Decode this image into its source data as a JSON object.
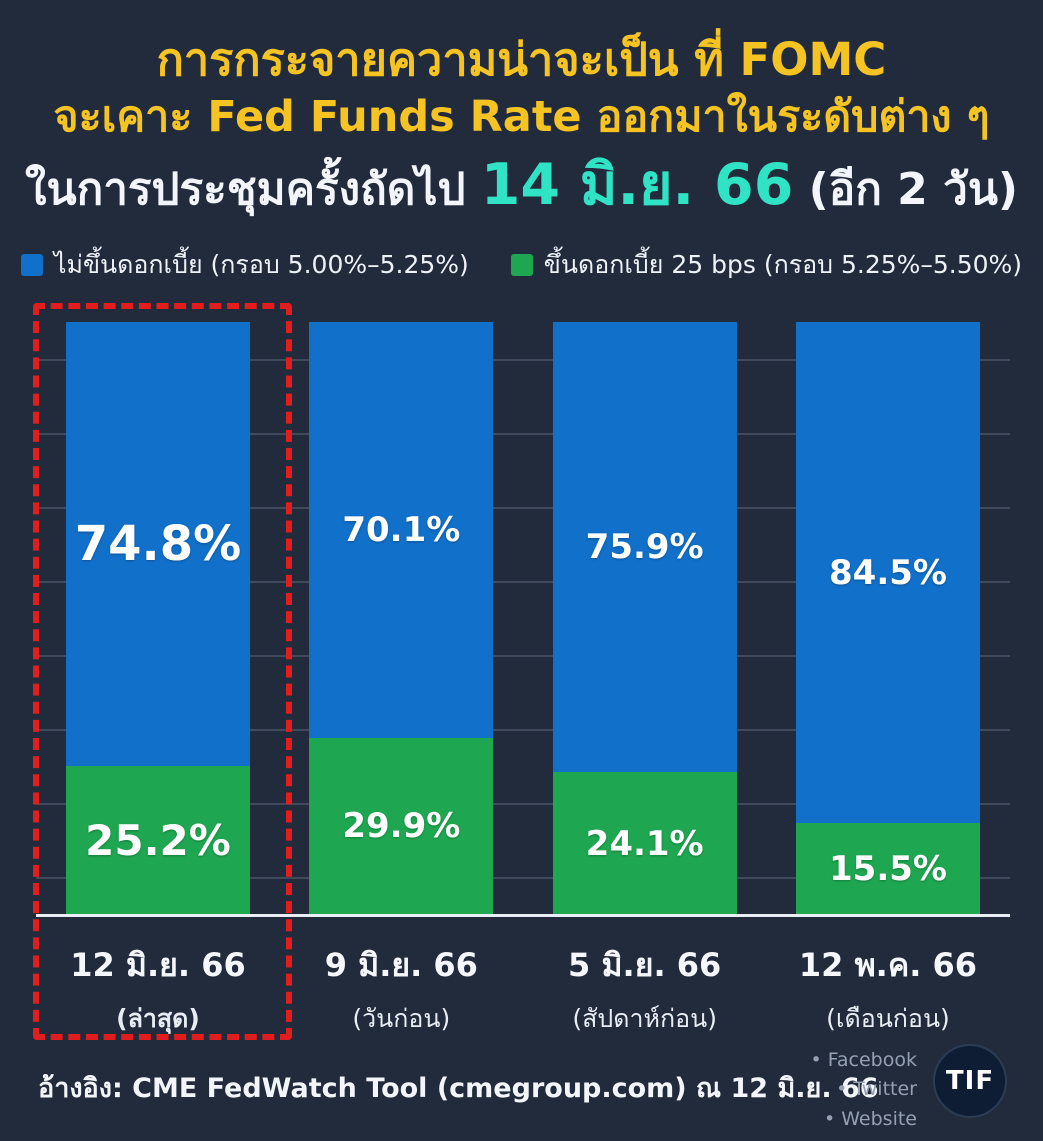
{
  "title": {
    "line1_bold": "การกระจายความน่าจะเป็น",
    "line1_rest": " ที่ FOMC",
    "line2": "จะเคาะ Fed Funds Rate ออกมาในระดับต่าง ๆ",
    "line3_prefix": "ในการประชุมครั้งถัดไป ",
    "line3_highlight": "14 มิ.ย. 66",
    "line3_suffix": " (อีก 2 วัน)"
  },
  "legend": [
    {
      "label": "ไม่ขึ้นดอกเบี้ย (กรอบ 5.00%–5.25%)",
      "color": "#1170c9"
    },
    {
      "label": "ขึ้นดอกเบี้ย 25 bps (กรอบ 5.25%–5.50%)",
      "color": "#1ea750"
    }
  ],
  "chart_data": {
    "type": "bar",
    "stacked": true,
    "unit": "%",
    "ylim": [
      0,
      100
    ],
    "grid": true,
    "legend_position": "top",
    "categories": [
      "12 มิ.ย. 66",
      "9 มิ.ย. 66",
      "5 มิ.ย. 66",
      "12 พ.ค. 66"
    ],
    "category_sublabels": [
      "(ล่าสุด)",
      "(วันก่อน)",
      "(สัปดาห์ก่อน)",
      "(เดือนก่อน)"
    ],
    "series": [
      {
        "name": "ไม่ขึ้นดอกเบี้ย (กรอบ 5.00%–5.25%)",
        "color": "#1170c9",
        "values": [
          74.8,
          70.1,
          75.9,
          84.5
        ]
      },
      {
        "name": "ขึ้นดอกเบี้ย 25 bps (กรอบ 5.25%–5.50%)",
        "color": "#1ea750",
        "values": [
          25.2,
          29.9,
          24.1,
          15.5
        ]
      }
    ],
    "value_labels": {
      "blue": [
        "74.8%",
        "70.1%",
        "75.9%",
        "84.5%"
      ],
      "green": [
        "25.2%",
        "29.9%",
        "24.1%",
        "15.5%"
      ]
    },
    "highlight_category_index": 0
  },
  "footer": {
    "source": "อ้างอิง: CME FedWatch Tool (cmegroup.com) ณ 12 มิ.ย. 66",
    "social": [
      "• Facebook",
      "• Twitter",
      "• Website"
    ],
    "logo_text": "TIF"
  },
  "colors": {
    "background": "#212b3c",
    "title_yellow": "#f6c422",
    "highlight_teal": "#31e3c5",
    "bar_blue": "#1170c9",
    "bar_green": "#1ea750",
    "highlight_red": "#e11d1d"
  }
}
